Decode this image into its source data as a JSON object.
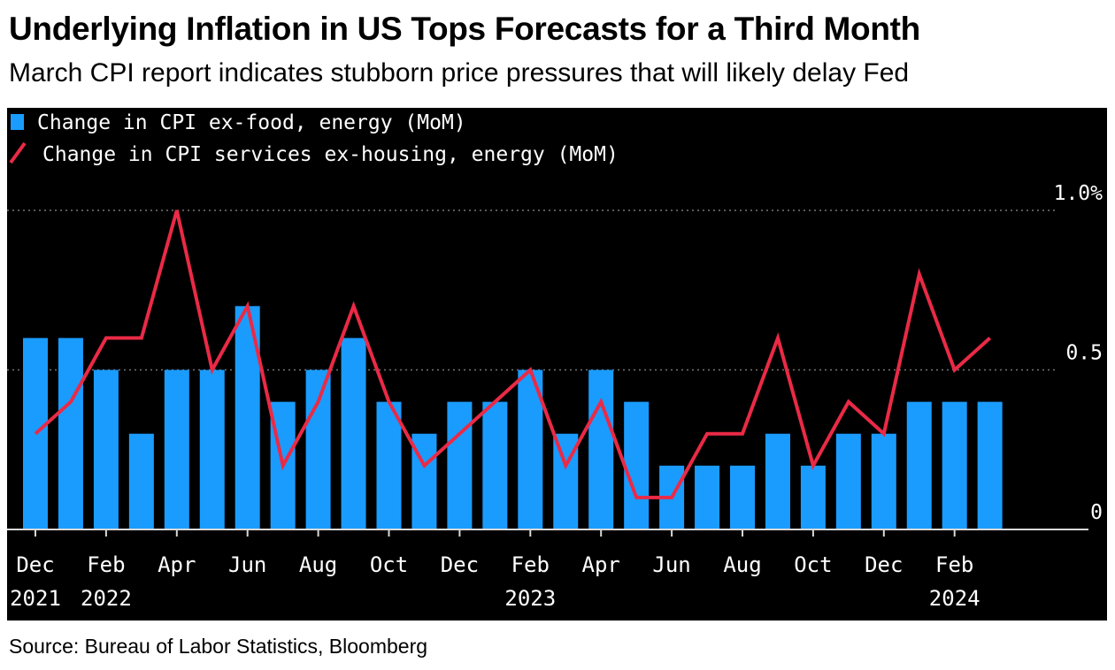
{
  "title": "Underlying Inflation in US Tops Forecasts for a Third Month",
  "subtitle": "March CPI report indicates stubborn price pressures that will likely delay Fed",
  "source": "Source: Bureau of Labor Statistics, Bloomberg",
  "colors": {
    "bar": "#1a9cff",
    "line": "#ea2a46",
    "background": "#000000",
    "text": "#ffffff",
    "grid": "#777777"
  },
  "chart_data": {
    "type": "bar",
    "categories": [
      "Dec 2021",
      "Jan 2022",
      "Feb 2022",
      "Mar 2022",
      "Apr 2022",
      "May 2022",
      "Jun 2022",
      "Jul 2022",
      "Aug 2022",
      "Sep 2022",
      "Oct 2022",
      "Nov 2022",
      "Dec 2022",
      "Jan 2023",
      "Feb 2023",
      "Mar 2023",
      "Apr 2023",
      "May 2023",
      "Jun 2023",
      "Jul 2023",
      "Aug 2023",
      "Sep 2023",
      "Oct 2023",
      "Nov 2023",
      "Dec 2023",
      "Jan 2024",
      "Feb 2024",
      "Mar 2024"
    ],
    "series": [
      {
        "name": "Change in CPI ex-food, energy (MoM)",
        "type": "bar",
        "values": [
          0.6,
          0.6,
          0.5,
          0.3,
          0.5,
          0.5,
          0.7,
          0.4,
          0.5,
          0.6,
          0.4,
          0.3,
          0.4,
          0.4,
          0.5,
          0.3,
          0.5,
          0.4,
          0.2,
          0.2,
          0.2,
          0.3,
          0.2,
          0.3,
          0.3,
          0.4,
          0.4,
          0.4
        ]
      },
      {
        "name": "Change in CPI services ex-housing, energy (MoM)",
        "type": "line",
        "values": [
          0.3,
          0.4,
          0.6,
          0.6,
          1.0,
          0.5,
          0.7,
          0.2,
          0.4,
          0.7,
          0.4,
          0.2,
          0.3,
          0.4,
          0.5,
          0.2,
          0.4,
          0.1,
          0.1,
          0.3,
          0.3,
          0.6,
          0.2,
          0.4,
          0.3,
          0.8,
          0.5,
          0.6
        ]
      }
    ],
    "ylim": [
      0,
      1.0
    ],
    "yticks": [
      {
        "value": 0,
        "label": "0"
      },
      {
        "value": 0.5,
        "label": "0.5"
      },
      {
        "value": 1.0,
        "label": "1.0%"
      }
    ],
    "xticks": [
      {
        "index": 0,
        "month": "Dec",
        "year": "2021"
      },
      {
        "index": 2,
        "month": "Feb",
        "year": "2022"
      },
      {
        "index": 4,
        "month": "Apr",
        "year": ""
      },
      {
        "index": 6,
        "month": "Jun",
        "year": ""
      },
      {
        "index": 8,
        "month": "Aug",
        "year": ""
      },
      {
        "index": 10,
        "month": "Oct",
        "year": ""
      },
      {
        "index": 12,
        "month": "Dec",
        "year": ""
      },
      {
        "index": 14,
        "month": "Feb",
        "year": "2023"
      },
      {
        "index": 16,
        "month": "Apr",
        "year": ""
      },
      {
        "index": 18,
        "month": "Jun",
        "year": ""
      },
      {
        "index": 20,
        "month": "Aug",
        "year": ""
      },
      {
        "index": 22,
        "month": "Oct",
        "year": ""
      },
      {
        "index": 24,
        "month": "Dec",
        "year": ""
      },
      {
        "index": 26,
        "month": "Feb",
        "year": "2024"
      }
    ],
    "grid": "dotted horizontal",
    "legend_position": "top-left"
  }
}
